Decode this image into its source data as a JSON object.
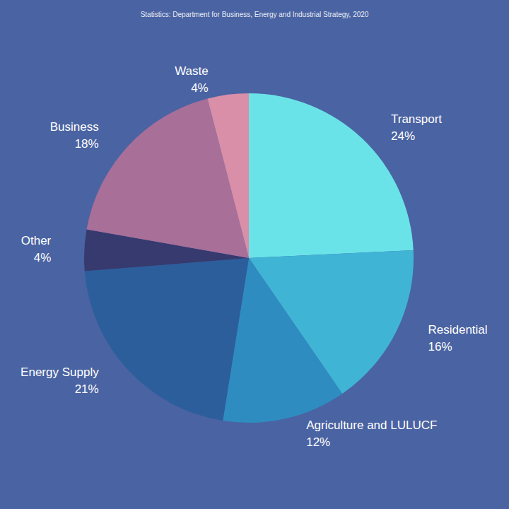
{
  "chart_data": {
    "type": "pie",
    "title": "Statistics: Department for Business, Energy and Industrial Strategy, 2020",
    "categories": [
      "Transport",
      "Residential",
      "Agriculture and LULUCF",
      "Energy Supply",
      "Other",
      "Business",
      "Waste"
    ],
    "values": [
      24,
      16,
      12,
      21,
      4,
      18,
      4
    ],
    "value_labels": [
      "24%",
      "16%",
      "12%",
      "21%",
      "4%",
      "18%",
      "4%"
    ],
    "colors": [
      "#6ae3e8",
      "#40b4d5",
      "#2f8cc0",
      "#2c5e9c",
      "#363a6e",
      "#a86f99",
      "#d98fa8"
    ],
    "data_labels": true
  }
}
